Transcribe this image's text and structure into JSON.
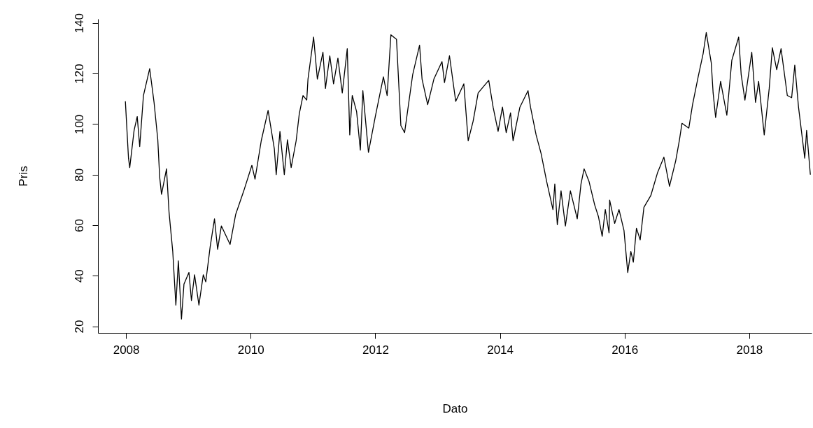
{
  "chart_data": {
    "type": "line",
    "xlabel": "Dato",
    "ylabel": "Pris",
    "xlim": [
      2007.55,
      2019.0
    ],
    "xticks": [
      2008,
      2010,
      2012,
      2014,
      2016,
      2018
    ],
    "ylim": [
      17.4,
      141.6
    ],
    "yticks": [
      20,
      40,
      60,
      80,
      100,
      120,
      140
    ],
    "grid": false,
    "marker": "none",
    "line_style": "solid",
    "x": [
      2007.99,
      2008.04,
      2008.06,
      2008.13,
      2008.18,
      2008.22,
      2008.28,
      2008.38,
      2008.45,
      2008.51,
      2008.54,
      2008.57,
      2008.65,
      2008.69,
      2008.75,
      2008.8,
      2008.84,
      2008.89,
      2008.93,
      2009.01,
      2009.05,
      2009.1,
      2009.17,
      2009.24,
      2009.28,
      2009.35,
      2009.42,
      2009.47,
      2009.53,
      2009.67,
      2009.76,
      2009.89,
      2010.02,
      2010.07,
      2010.17,
      2010.28,
      2010.38,
      2010.41,
      2010.47,
      2010.54,
      2010.59,
      2010.65,
      2010.73,
      2010.78,
      2010.84,
      2010.9,
      2010.92,
      2011.01,
      2011.07,
      2011.16,
      2011.2,
      2011.27,
      2011.33,
      2011.4,
      2011.47,
      2011.55,
      2011.59,
      2011.63,
      2011.7,
      2011.76,
      2011.8,
      2011.89,
      2012.0,
      2012.13,
      2012.19,
      2012.25,
      2012.34,
      2012.41,
      2012.47,
      2012.6,
      2012.71,
      2012.75,
      2012.84,
      2012.94,
      2013.07,
      2013.11,
      2013.19,
      2013.29,
      2013.42,
      2013.49,
      2013.57,
      2013.65,
      2013.82,
      2013.89,
      2013.97,
      2014.04,
      2014.1,
      2014.17,
      2014.21,
      2014.32,
      2014.45,
      2014.49,
      2014.58,
      2014.66,
      2014.75,
      2014.85,
      2014.88,
      2014.92,
      2014.98,
      2015.05,
      2015.13,
      2015.24,
      2015.3,
      2015.35,
      2015.43,
      2015.52,
      2015.58,
      2015.64,
      2015.69,
      2015.75,
      2015.76,
      2015.84,
      2015.91,
      2015.99,
      2016.05,
      2016.1,
      2016.14,
      2016.19,
      2016.25,
      2016.31,
      2016.42,
      2016.53,
      2016.63,
      2016.72,
      2016.82,
      2016.88,
      2016.92,
      2017.03,
      2017.09,
      2017.18,
      2017.26,
      2017.31,
      2017.39,
      2017.42,
      2017.46,
      2017.54,
      2017.64,
      2017.72,
      2017.83,
      2017.87,
      2017.93,
      2018.04,
      2018.1,
      2018.15,
      2018.24,
      2018.32,
      2018.37,
      2018.44,
      2018.51,
      2018.61,
      2018.68,
      2018.73,
      2018.79,
      2018.89,
      2018.92,
      2018.98
    ],
    "series": [
      {
        "color": "#000000",
        "values": [
          109.0,
          86.5,
          82.8,
          97.5,
          103.0,
          91.1,
          111.3,
          121.9,
          108.6,
          93.8,
          79.1,
          72.2,
          82.3,
          65.3,
          49.6,
          28.4,
          45.9,
          22.9,
          36.7,
          41.3,
          30.2,
          40.4,
          28.4,
          40.4,
          37.6,
          51.4,
          62.5,
          50.5,
          59.7,
          52.4,
          64.3,
          73.6,
          83.7,
          78.2,
          93.4,
          105.4,
          90.2,
          80.0,
          97.1,
          80.0,
          93.8,
          82.8,
          93.4,
          104.0,
          111.3,
          109.5,
          117.8,
          134.4,
          117.8,
          128.4,
          114.1,
          127.0,
          115.9,
          126.1,
          112.3,
          129.8,
          95.7,
          111.3,
          104.9,
          89.7,
          113.2,
          88.8,
          103.0,
          118.7,
          111.3,
          135.3,
          133.5,
          99.4,
          96.6,
          119.6,
          131.2,
          117.8,
          107.7,
          117.8,
          124.7,
          116.4,
          127.0,
          109.0,
          115.9,
          93.4,
          101.2,
          112.3,
          117.3,
          106.7,
          97.1,
          106.7,
          96.6,
          104.4,
          93.4,
          106.7,
          113.2,
          106.7,
          95.7,
          88.3,
          77.2,
          66.2,
          76.3,
          60.2,
          73.6,
          59.7,
          73.6,
          62.5,
          76.3,
          82.3,
          77.2,
          68.0,
          63.4,
          55.6,
          66.2,
          57.0,
          69.9,
          60.7,
          66.2,
          57.9,
          41.3,
          49.6,
          45.4,
          58.8,
          54.2,
          67.1,
          71.7,
          80.9,
          86.9,
          75.4,
          85.5,
          93.8,
          100.3,
          98.4,
          107.7,
          118.7,
          127.9,
          136.2,
          124.2,
          112.3,
          102.6,
          116.9,
          103.5,
          125.2,
          134.4,
          119.6,
          109.5,
          128.4,
          108.6,
          116.9,
          95.7,
          114.1,
          130.2,
          121.5,
          129.8,
          111.3,
          110.4,
          123.3,
          106.7,
          86.5,
          97.5,
          80.0
        ]
      }
    ]
  }
}
